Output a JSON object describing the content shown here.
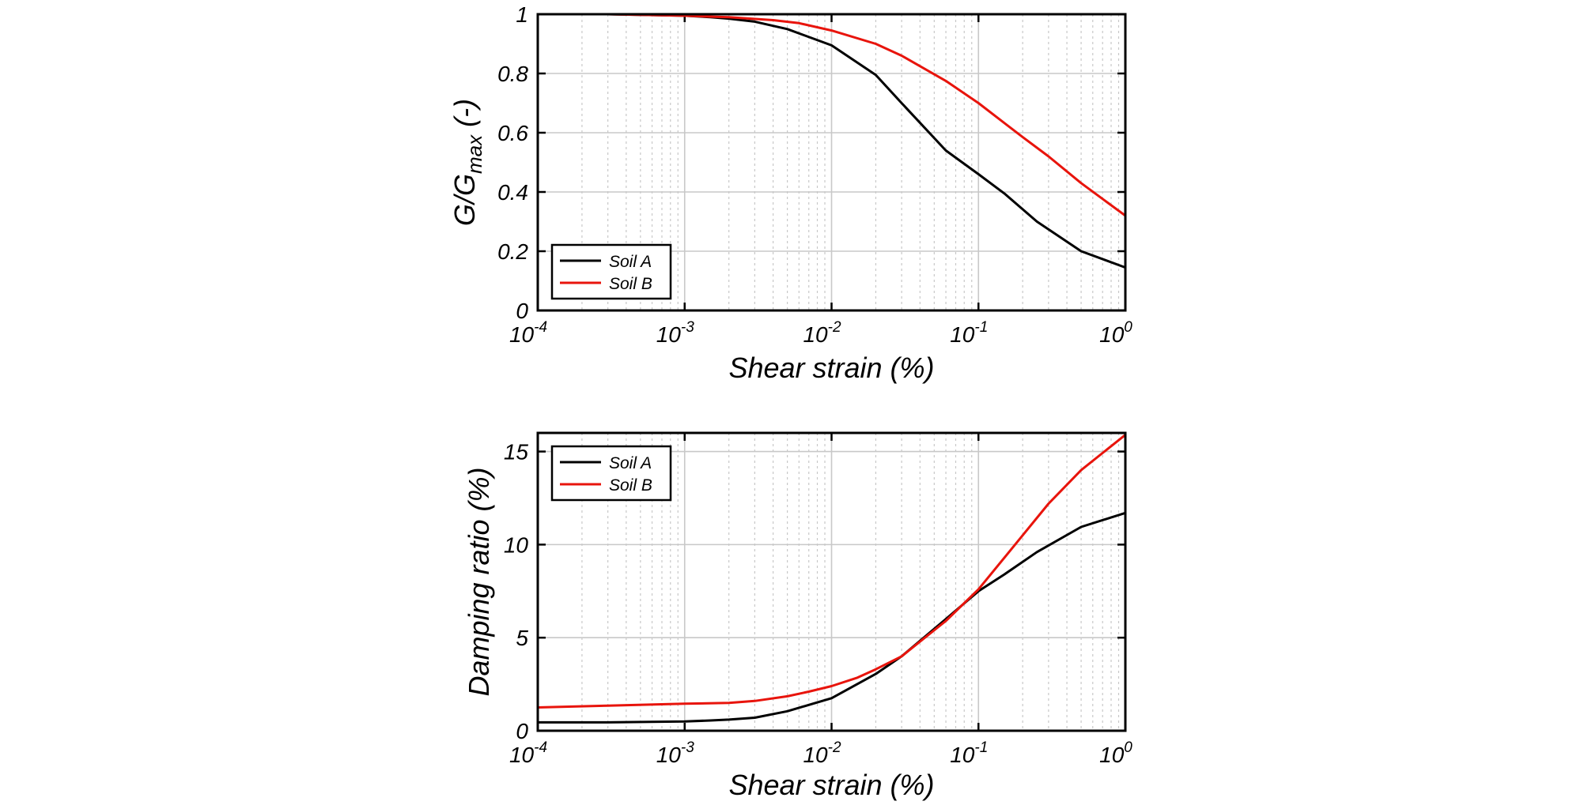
{
  "chart_data": [
    {
      "type": "line",
      "title": "",
      "xlabel": "Shear strain (%)",
      "ylabel": "G/G",
      "ylabel_sub": "max",
      "ylabel_suffix": " (-)",
      "xscale": "log",
      "xlim": [
        0.0001,
        1
      ],
      "ylim": [
        0,
        1
      ],
      "xticks": [
        {
          "value": 0.0001,
          "base": "10",
          "exp": "-4"
        },
        {
          "value": 0.001,
          "base": "10",
          "exp": "-3"
        },
        {
          "value": 0.01,
          "base": "10",
          "exp": "-2"
        },
        {
          "value": 0.1,
          "base": "10",
          "exp": "-1"
        },
        {
          "value": 1,
          "base": "10",
          "exp": "0"
        }
      ],
      "yticks": [
        {
          "value": 0,
          "label": "0"
        },
        {
          "value": 0.2,
          "label": "0.2"
        },
        {
          "value": 0.4,
          "label": "0.4"
        },
        {
          "value": 0.6,
          "label": "0.6"
        },
        {
          "value": 0.8,
          "label": "0.8"
        },
        {
          "value": 1,
          "label": "1"
        }
      ],
      "grid": true,
      "legend_position": "bottom-left",
      "series": [
        {
          "name": "Soil A",
          "color": "#000000",
          "x": [
            0.0001,
            0.0003,
            0.001,
            0.0015,
            0.002,
            0.003,
            0.005,
            0.01,
            0.02,
            0.03,
            0.06,
            0.1,
            0.15,
            0.25,
            0.5,
            1.0
          ],
          "y": [
            1.0,
            1.0,
            0.995,
            0.99,
            0.985,
            0.975,
            0.95,
            0.895,
            0.795,
            0.7,
            0.54,
            0.46,
            0.395,
            0.3,
            0.2,
            0.145
          ]
        },
        {
          "name": "Soil B",
          "color": "#e8140c",
          "x": [
            0.0001,
            0.0003,
            0.001,
            0.002,
            0.004,
            0.006,
            0.01,
            0.02,
            0.03,
            0.06,
            0.1,
            0.2,
            0.3,
            0.5,
            1.0
          ],
          "y": [
            1.0,
            1.0,
            0.995,
            0.99,
            0.98,
            0.97,
            0.945,
            0.9,
            0.86,
            0.775,
            0.7,
            0.585,
            0.52,
            0.43,
            0.32
          ]
        }
      ]
    },
    {
      "type": "line",
      "title": "",
      "xlabel": "Shear strain (%)",
      "ylabel": "Damping ratio (%)",
      "xscale": "log",
      "xlim": [
        0.0001,
        1
      ],
      "ylim": [
        0,
        16
      ],
      "xticks": [
        {
          "value": 0.0001,
          "base": "10",
          "exp": "-4"
        },
        {
          "value": 0.001,
          "base": "10",
          "exp": "-3"
        },
        {
          "value": 0.01,
          "base": "10",
          "exp": "-2"
        },
        {
          "value": 0.1,
          "base": "10",
          "exp": "-1"
        },
        {
          "value": 1,
          "base": "10",
          "exp": "0"
        }
      ],
      "yticks": [
        {
          "value": 0,
          "label": "0"
        },
        {
          "value": 5,
          "label": "5"
        },
        {
          "value": 10,
          "label": "10"
        },
        {
          "value": 15,
          "label": "15"
        }
      ],
      "grid": true,
      "legend_position": "top-left",
      "series": [
        {
          "name": "Soil A",
          "color": "#000000",
          "x": [
            0.0001,
            0.0003,
            0.001,
            0.0015,
            0.002,
            0.003,
            0.005,
            0.01,
            0.02,
            0.03,
            0.06,
            0.1,
            0.15,
            0.25,
            0.5,
            1.0
          ],
          "y": [
            0.45,
            0.45,
            0.5,
            0.55,
            0.6,
            0.7,
            1.05,
            1.75,
            3.05,
            4.0,
            6.0,
            7.5,
            8.4,
            9.6,
            10.95,
            11.7
          ]
        },
        {
          "name": "Soil B",
          "color": "#e8140c",
          "x": [
            0.0001,
            0.0003,
            0.001,
            0.002,
            0.003,
            0.005,
            0.007,
            0.01,
            0.015,
            0.02,
            0.03,
            0.06,
            0.1,
            0.2,
            0.3,
            0.5,
            1.0
          ],
          "y": [
            1.25,
            1.35,
            1.45,
            1.5,
            1.6,
            1.85,
            2.1,
            2.4,
            2.85,
            3.3,
            4.0,
            5.9,
            7.6,
            10.5,
            12.2,
            14.0,
            15.9
          ]
        }
      ]
    }
  ]
}
